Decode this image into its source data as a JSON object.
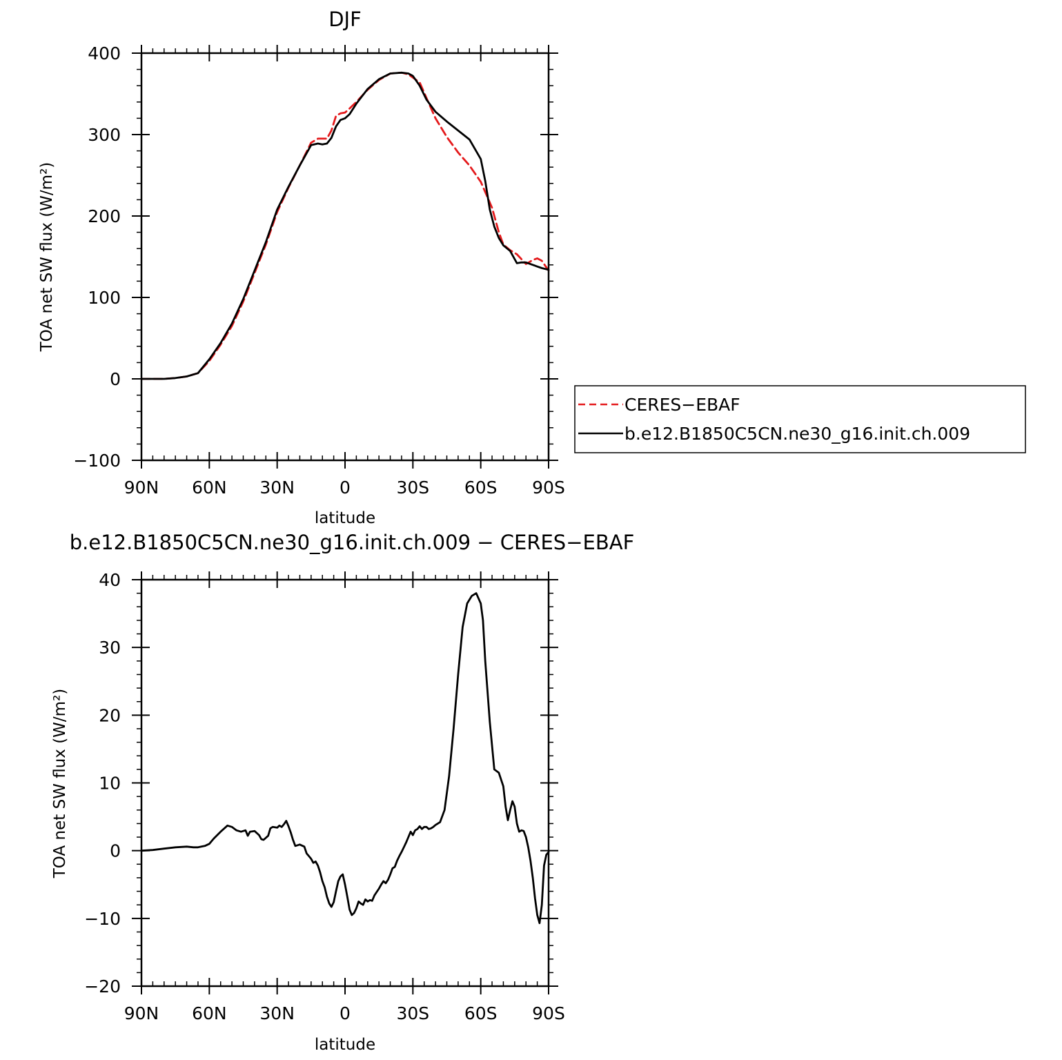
{
  "chart_data": [
    {
      "type": "line",
      "title": "DJF",
      "xlabel": "latitude",
      "ylabel": "TOA net SW flux (W/m²)",
      "xlim": [
        90,
        -90
      ],
      "ylim": [
        -100,
        400
      ],
      "xtick_values": [
        90,
        60,
        30,
        0,
        -30,
        -60,
        -90
      ],
      "xtick_labels": [
        "90N",
        "60N",
        "30N",
        "0",
        "30S",
        "60S",
        "90S"
      ],
      "ytick_values": [
        -100,
        0,
        100,
        200,
        300,
        400
      ],
      "ytick_labels": [
        "−100",
        "0",
        "100",
        "200",
        "300",
        "400"
      ],
      "legend_position": "right",
      "series": [
        {
          "name": "CERES−EBAF",
          "color": "#e41a1c",
          "dash": "dashed",
          "x": [
            90,
            85,
            80,
            75,
            70,
            65,
            60,
            55,
            50,
            45,
            40,
            35,
            30,
            25,
            20,
            15,
            12,
            10,
            8,
            6,
            4,
            2,
            0,
            -2,
            -5,
            -10,
            -15,
            -20,
            -25,
            -28,
            -30,
            -33,
            -36,
            -40,
            -45,
            -50,
            -55,
            -60,
            -65,
            -68,
            -70,
            -73,
            -76,
            -80,
            -83,
            -85,
            -87,
            -90
          ],
          "y": [
            0,
            0,
            0,
            1,
            3,
            7,
            22,
            42,
            65,
            95,
            130,
            165,
            205,
            235,
            262,
            290,
            295,
            295,
            295,
            305,
            323,
            326,
            327,
            332,
            340,
            355,
            367,
            375,
            376,
            374,
            370,
            364,
            345,
            320,
            297,
            278,
            262,
            242,
            210,
            180,
            165,
            158,
            153,
            141,
            146,
            148,
            145,
            133
          ]
        },
        {
          "name": "b.e12.B1850C5CN.ne30_g16.init.ch.009",
          "color": "#000000",
          "dash": "solid",
          "x": [
            90,
            85,
            80,
            75,
            70,
            65,
            60,
            55,
            50,
            45,
            40,
            35,
            30,
            25,
            20,
            15,
            12,
            10,
            8,
            6,
            4,
            2,
            0,
            -2,
            -5,
            -10,
            -15,
            -20,
            -25,
            -28,
            -30,
            -33,
            -36,
            -40,
            -45,
            -50,
            -55,
            -60,
            -62,
            -64,
            -66,
            -68,
            -70,
            -73,
            -76,
            -78,
            -80,
            -83,
            -85,
            -87,
            -90
          ],
          "y": [
            0,
            0,
            0,
            1,
            3,
            7,
            24,
            44,
            68,
            98,
            133,
            168,
            208,
            236,
            262,
            287,
            289,
            288,
            289,
            296,
            310,
            318,
            320,
            325,
            338,
            356,
            368,
            375,
            376,
            375,
            372,
            360,
            343,
            328,
            316,
            305,
            294,
            270,
            243,
            208,
            187,
            173,
            164,
            157,
            142,
            143,
            143,
            140,
            138,
            136,
            134
          ]
        }
      ]
    },
    {
      "type": "line",
      "title": "b.e12.B1850C5CN.ne30_g16.init.ch.009 − CERES−EBAF",
      "xlabel": "latitude",
      "ylabel": "TOA net SW flux (W/m²)",
      "xlim": [
        90,
        -90
      ],
      "ylim": [
        -20,
        40
      ],
      "xtick_values": [
        90,
        60,
        30,
        0,
        -30,
        -60,
        -90
      ],
      "xtick_labels": [
        "90N",
        "60N",
        "30N",
        "0",
        "30S",
        "60S",
        "90S"
      ],
      "ytick_values": [
        -20,
        -10,
        0,
        10,
        20,
        30,
        40
      ],
      "ytick_labels": [
        "−20",
        "−10",
        "0",
        "10",
        "20",
        "30",
        "40"
      ],
      "series": [
        {
          "color": "#000000",
          "dash": "solid",
          "x": [
            90,
            85,
            80,
            75,
            70,
            67,
            65,
            62,
            60,
            58,
            55,
            52,
            50,
            48,
            46,
            44,
            43,
            42,
            40,
            38,
            37,
            36,
            34,
            33,
            32,
            30,
            29,
            28,
            27,
            26,
            25,
            24,
            23,
            22,
            21,
            20,
            18,
            17,
            16,
            15,
            14,
            13,
            12,
            11,
            10,
            9,
            8,
            7,
            6,
            5,
            4,
            3,
            2,
            1,
            0,
            -1,
            -2,
            -3,
            -4,
            -5,
            -6,
            -7,
            -8,
            -9,
            -10,
            -11,
            -12,
            -13,
            -14,
            -15,
            -16,
            -17,
            -18,
            -19,
            -20,
            -21,
            -22,
            -23,
            -24,
            -25,
            -26,
            -27,
            -28,
            -29,
            -30,
            -31,
            -32,
            -33,
            -34,
            -35,
            -36,
            -37,
            -38,
            -39,
            -40,
            -42,
            -44,
            -46,
            -48,
            -50,
            -52,
            -54,
            -56,
            -58,
            -60,
            -61,
            -62,
            -64,
            -66,
            -68,
            -70,
            -71,
            -72,
            -73,
            -74,
            -75,
            -76,
            -77,
            -78,
            -79,
            -80,
            -81,
            -82,
            -83,
            -84,
            -85,
            -86,
            -87,
            -88,
            -89,
            -90
          ],
          "y": [
            0,
            0.1,
            0.3,
            0.5,
            0.6,
            0.5,
            0.5,
            0.7,
            1.0,
            1.8,
            2.8,
            3.7,
            3.5,
            3.0,
            2.8,
            3.0,
            2.2,
            2.8,
            2.9,
            2.3,
            1.7,
            1.6,
            2.2,
            3.3,
            3.5,
            3.4,
            3.7,
            3.5,
            3.9,
            4.4,
            3.6,
            2.7,
            1.6,
            0.7,
            0.8,
            0.9,
            0.6,
            -0.4,
            -0.8,
            -1.2,
            -1.8,
            -1.6,
            -2.2,
            -3.2,
            -4.5,
            -5.4,
            -6.8,
            -7.8,
            -8.3,
            -7.6,
            -6.0,
            -4.5,
            -3.8,
            -3.5,
            -5.0,
            -6.8,
            -8.7,
            -9.5,
            -9.2,
            -8.5,
            -7.5,
            -7.8,
            -8.0,
            -7.2,
            -7.5,
            -7.3,
            -7.4,
            -6.6,
            -6.1,
            -5.6,
            -5.0,
            -4.5,
            -4.8,
            -4.3,
            -3.5,
            -2.6,
            -2.4,
            -1.5,
            -0.8,
            -0.2,
            0.5,
            1.2,
            2.0,
            2.8,
            2.3,
            3.0,
            3.2,
            3.6,
            3.2,
            3.5,
            3.5,
            3.2,
            3.3,
            3.5,
            3.8,
            4.2,
            6.0,
            11.0,
            18.0,
            26.0,
            33.0,
            36.5,
            37.6,
            38.0,
            36.5,
            34.0,
            28.0,
            19.0,
            12.0,
            11.5,
            9.5,
            6.5,
            4.5,
            6.0,
            7.3,
            6.5,
            4.0,
            2.8,
            3.0,
            2.9,
            2.0,
            0.5,
            -1.5,
            -4.0,
            -7.0,
            -9.5,
            -10.7,
            -8.0,
            -2.2,
            -0.6,
            -0.2
          ]
        }
      ]
    }
  ]
}
